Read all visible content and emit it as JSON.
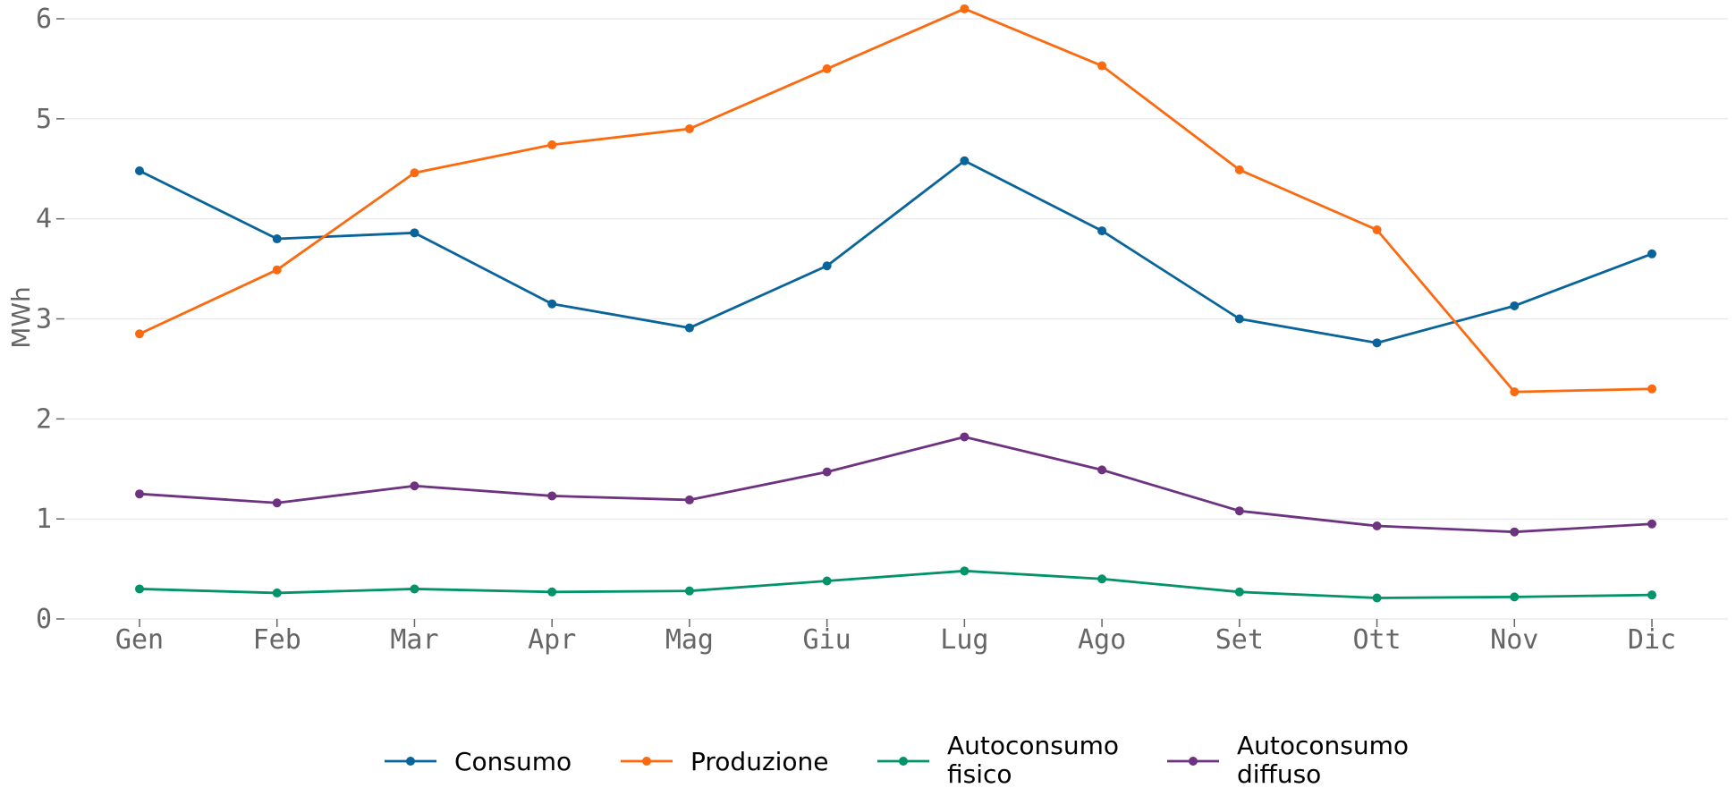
{
  "chart_data": {
    "type": "line",
    "title": "",
    "xlabel": "",
    "ylabel": "MWh",
    "categories": [
      "Gen",
      "Feb",
      "Mar",
      "Apr",
      "Mag",
      "Giu",
      "Lug",
      "Ago",
      "Set",
      "Ott",
      "Nov",
      "Dic"
    ],
    "ylim": [
      0,
      6
    ],
    "yticks": [
      "0",
      "1",
      "2",
      "3",
      "4",
      "5",
      "6"
    ],
    "grid": "horizontal",
    "legend_position": "bottom",
    "series": [
      {
        "name": "Consumo",
        "color": "#08649a",
        "values": [
          4.48,
          3.8,
          3.86,
          3.15,
          2.91,
          3.53,
          4.58,
          3.88,
          3.0,
          2.76,
          3.13,
          3.65
        ]
      },
      {
        "name": "Produzione",
        "color": "#fb6a0e",
        "values": [
          2.85,
          3.49,
          4.46,
          4.74,
          4.9,
          5.5,
          6.1,
          5.53,
          4.49,
          3.89,
          2.27,
          2.3
        ]
      },
      {
        "name": "Autoconsumo fisico",
        "legend_lines": [
          "Autoconsumo",
          "fisico"
        ],
        "color": "#02936a",
        "values": [
          0.3,
          0.26,
          0.3,
          0.27,
          0.28,
          0.38,
          0.48,
          0.4,
          0.27,
          0.21,
          0.22,
          0.24
        ]
      },
      {
        "name": "Autoconsumo diffuso",
        "legend_lines": [
          "Autoconsumo",
          "diffuso"
        ],
        "color": "#6d3280",
        "values": [
          1.25,
          1.16,
          1.33,
          1.23,
          1.19,
          1.47,
          1.82,
          1.49,
          1.08,
          0.93,
          0.87,
          0.95
        ]
      }
    ]
  }
}
